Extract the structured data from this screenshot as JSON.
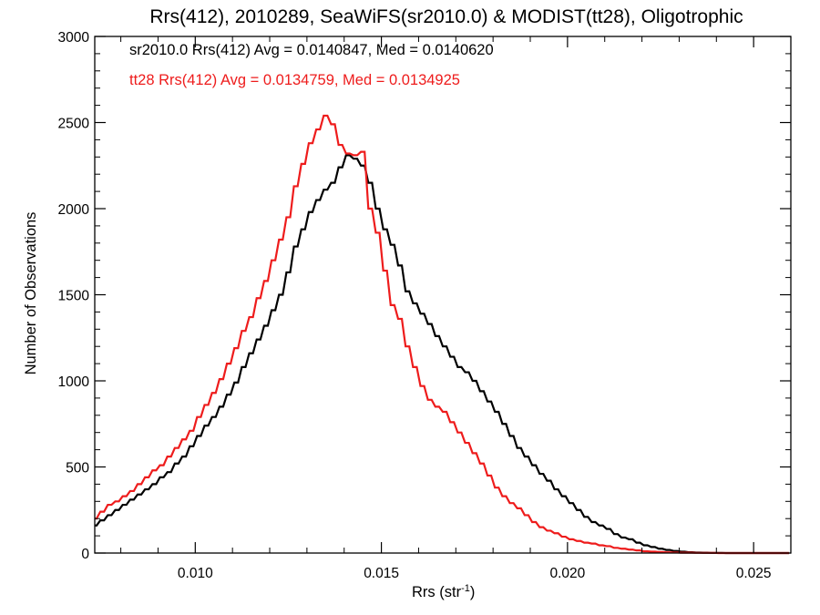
{
  "chart_data": {
    "type": "line",
    "title": "Rrs(412), 2010289, SeaWiFS(sr2010.0) & MODIST(tt28), Oligotrophic",
    "xlabel": "Rrs (str",
    "xlabel_sup": "-1",
    "xlabel_close": ")",
    "ylabel": "Number of Observations",
    "xlim": [
      0.0073,
      0.026
    ],
    "ylim": [
      0,
      3000
    ],
    "xticks": [
      0.01,
      0.015,
      0.02,
      0.025
    ],
    "xtick_labels": [
      "0.010",
      "0.015",
      "0.020",
      "0.025"
    ],
    "yticks": [
      0,
      500,
      1000,
      1500,
      2000,
      2500,
      3000
    ],
    "ytick_labels": [
      "0",
      "500",
      "1000",
      "1500",
      "2000",
      "2500",
      "3000"
    ],
    "grid": false,
    "legend_position": "top-left",
    "bin_width": 0.0001,
    "series": [
      {
        "name": "sr2010.0",
        "legend_text": "sr2010.0 Rrs(412) Avg = 0.0140847, Med = 0.0140620",
        "color": "#000000",
        "x": [
          0.0073,
          0.0075,
          0.0077,
          0.0079,
          0.0081,
          0.0083,
          0.0085,
          0.0087,
          0.0089,
          0.0091,
          0.0093,
          0.0095,
          0.0097,
          0.0099,
          0.0101,
          0.0103,
          0.0105,
          0.0107,
          0.0109,
          0.0111,
          0.0113,
          0.0115,
          0.0117,
          0.0119,
          0.0121,
          0.0123,
          0.0125,
          0.0127,
          0.0129,
          0.0131,
          0.0133,
          0.0135,
          0.0137,
          0.0139,
          0.0141,
          0.0143,
          0.0145,
          0.0147,
          0.0149,
          0.0151,
          0.0153,
          0.0155,
          0.0157,
          0.0159,
          0.0161,
          0.0163,
          0.0165,
          0.0167,
          0.0169,
          0.0171,
          0.0173,
          0.0175,
          0.0177,
          0.0179,
          0.0181,
          0.0183,
          0.0185,
          0.0187,
          0.0189,
          0.0191,
          0.0193,
          0.0195,
          0.0197,
          0.0199,
          0.0201,
          0.0203,
          0.0205,
          0.0207,
          0.0209,
          0.0211,
          0.0213,
          0.0215,
          0.0217,
          0.0219,
          0.0221,
          0.0223,
          0.0225,
          0.0227,
          0.0229,
          0.0231,
          0.0233,
          0.0235,
          0.0237,
          0.0239,
          0.0241,
          0.0243,
          0.0245,
          0.0247,
          0.0249,
          0.0251,
          0.0253,
          0.0255,
          0.0257,
          0.0259
        ],
        "values": [
          160,
          190,
          220,
          250,
          280,
          310,
          340,
          370,
          400,
          440,
          470,
          520,
          560,
          620,
          680,
          740,
          790,
          850,
          920,
          990,
          1080,
          1160,
          1240,
          1320,
          1410,
          1500,
          1630,
          1780,
          1880,
          1980,
          2050,
          2110,
          2150,
          2240,
          2310,
          2290,
          2250,
          2150,
          2000,
          1880,
          1790,
          1670,
          1520,
          1450,
          1390,
          1330,
          1260,
          1200,
          1140,
          1080,
          1050,
          1000,
          940,
          880,
          820,
          750,
          680,
          610,
          560,
          510,
          460,
          420,
          370,
          330,
          290,
          250,
          210,
          180,
          160,
          140,
          110,
          90,
          80,
          60,
          45,
          35,
          25,
          18,
          12,
          8,
          5,
          3,
          2,
          1,
          1,
          0,
          0,
          0,
          0,
          0,
          0,
          0,
          0,
          0
        ]
      },
      {
        "name": "tt28",
        "legend_text": "tt28 Rrs(412) Avg = 0.0134759, Med = 0.0134925",
        "color": "#ee1c1c",
        "x": [
          0.0073,
          0.0075,
          0.0077,
          0.0079,
          0.0081,
          0.0083,
          0.0085,
          0.0087,
          0.0089,
          0.0091,
          0.0093,
          0.0095,
          0.0097,
          0.0099,
          0.0101,
          0.0103,
          0.0105,
          0.0107,
          0.0109,
          0.0111,
          0.0113,
          0.0115,
          0.0117,
          0.0119,
          0.0121,
          0.0123,
          0.0125,
          0.0127,
          0.0129,
          0.0131,
          0.0133,
          0.0135,
          0.0137,
          0.0139,
          0.0141,
          0.0143,
          0.0145,
          0.0147,
          0.0149,
          0.0151,
          0.0153,
          0.0155,
          0.0157,
          0.0159,
          0.0161,
          0.0163,
          0.0165,
          0.0167,
          0.0169,
          0.0171,
          0.0173,
          0.0175,
          0.0177,
          0.0179,
          0.0181,
          0.0183,
          0.0185,
          0.0187,
          0.0189,
          0.0191,
          0.0193,
          0.0195,
          0.0197,
          0.0199,
          0.0201,
          0.0203,
          0.0205,
          0.0207,
          0.0209,
          0.0211,
          0.0213,
          0.0215,
          0.0217,
          0.0219,
          0.0221,
          0.0223,
          0.0225,
          0.0227,
          0.0229,
          0.0231,
          0.0233,
          0.0235,
          0.0237,
          0.0239,
          0.0241,
          0.0243,
          0.0245,
          0.0247,
          0.0249,
          0.0251,
          0.0253,
          0.0255,
          0.0257,
          0.0259
        ],
        "values": [
          200,
          240,
          280,
          300,
          330,
          360,
          400,
          440,
          480,
          510,
          560,
          610,
          660,
          710,
          790,
          860,
          930,
          1010,
          1100,
          1190,
          1290,
          1370,
          1480,
          1580,
          1700,
          1820,
          1950,
          2130,
          2260,
          2380,
          2460,
          2540,
          2490,
          2370,
          2320,
          2310,
          2330,
          2000,
          1860,
          1640,
          1440,
          1360,
          1200,
          1080,
          970,
          890,
          850,
          820,
          760,
          700,
          640,
          580,
          520,
          450,
          380,
          330,
          290,
          260,
          220,
          180,
          150,
          130,
          115,
          95,
          80,
          70,
          60,
          55,
          45,
          40,
          30,
          25,
          20,
          15,
          10,
          8,
          6,
          4,
          3,
          2,
          2,
          1,
          1,
          1,
          0,
          0,
          0,
          0,
          0,
          0,
          0,
          0,
          0,
          0
        ]
      }
    ]
  }
}
